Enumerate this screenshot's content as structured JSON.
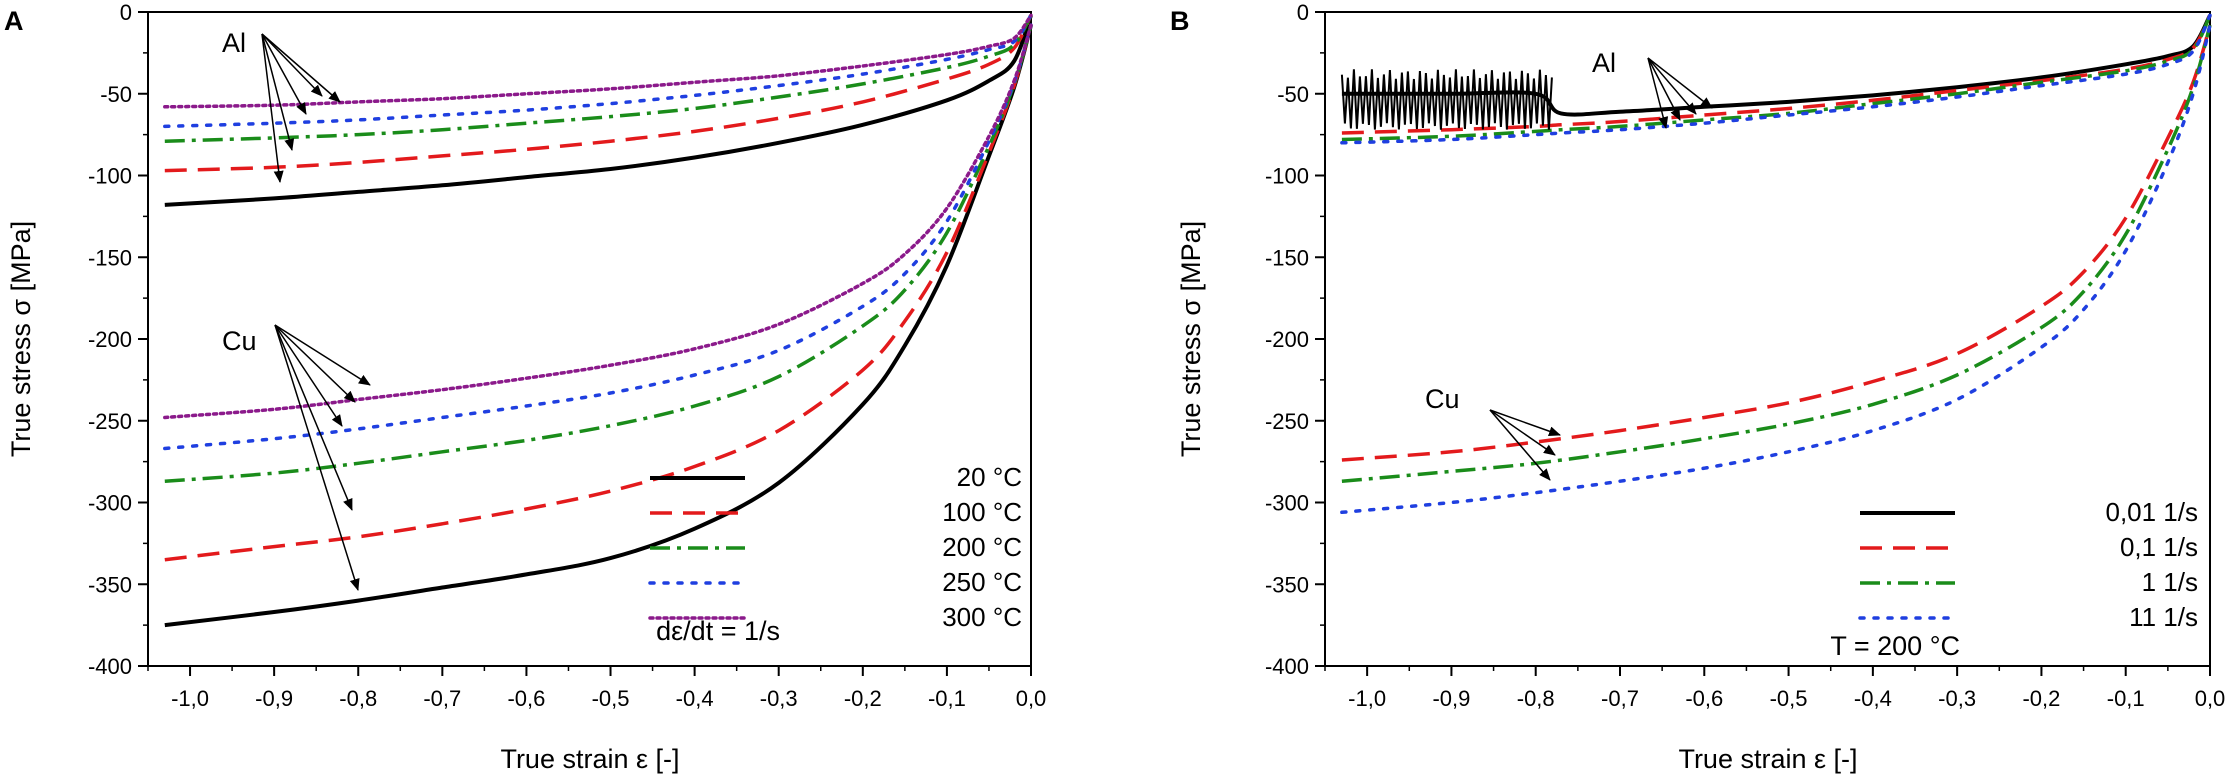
{
  "chart_data": [
    {
      "type": "line",
      "panel_label": "A",
      "xlabel": "True strain ε [-]",
      "ylabel": "True stress σ [MPa]",
      "xlim": [
        -1.05,
        0.0
      ],
      "ylim": [
        -400,
        0
      ],
      "x_ticks": [
        -1.0,
        -0.9,
        -0.8,
        -0.7,
        -0.6,
        -0.5,
        -0.4,
        -0.3,
        -0.2,
        -0.1,
        0.0
      ],
      "x_tick_labels": [
        "-1,0",
        "-0,9",
        "-0,8",
        "-0,7",
        "-0,6",
        "-0,5",
        "-0,4",
        "-0,3",
        "-0,2",
        "-0,1",
        "0,0"
      ],
      "y_ticks": [
        0,
        -50,
        -100,
        -150,
        -200,
        -250,
        -300,
        -350,
        -400
      ],
      "y_tick_labels": [
        "0",
        "-50",
        "-100",
        "-150",
        "-200",
        "-250",
        "-300",
        "-350",
        "-400"
      ],
      "grid": false,
      "legend_position": "bottom-right",
      "note": "dε/dt = 1/s",
      "groups": [
        {
          "label": "Al",
          "x": [
            -1.03,
            -0.9,
            -0.8,
            -0.7,
            -0.6,
            -0.5,
            -0.4,
            -0.3,
            -0.2,
            -0.1,
            -0.05,
            -0.02,
            0.0
          ],
          "series": [
            {
              "name": "20 °C",
              "values": [
                -118,
                -114,
                -110,
                -106,
                -101,
                -96,
                -89,
                -80,
                -69,
                -54,
                -42,
                -30,
                -2
              ]
            },
            {
              "name": "100 °C",
              "values": [
                -97,
                -95,
                -92,
                -88,
                -84,
                -79,
                -73,
                -65,
                -55,
                -41,
                -32,
                -22,
                -2
              ]
            },
            {
              "name": "200 °C",
              "values": [
                -79,
                -77,
                -75,
                -72,
                -68,
                -64,
                -59,
                -52,
                -44,
                -34,
                -27,
                -20,
                -2
              ]
            },
            {
              "name": "250 °C",
              "values": [
                -70,
                -68,
                -66,
                -63,
                -60,
                -56,
                -51,
                -45,
                -38,
                -29,
                -23,
                -18,
                -2
              ]
            },
            {
              "name": "300 °C",
              "values": [
                -58,
                -57,
                -55,
                -53,
                -50,
                -47,
                -43,
                -39,
                -33,
                -26,
                -21,
                -16,
                -2
              ]
            }
          ]
        },
        {
          "label": "Cu",
          "x": [
            -1.03,
            -0.9,
            -0.8,
            -0.7,
            -0.6,
            -0.5,
            -0.4,
            -0.3,
            -0.2,
            -0.15,
            -0.1,
            -0.05,
            -0.02,
            0.0
          ],
          "series": [
            {
              "name": "20 °C",
              "values": [
                -375,
                -367,
                -360,
                -352,
                -344,
                -334,
                -316,
                -288,
                -240,
                -204,
                -155,
                -88,
                -46,
                -8
              ]
            },
            {
              "name": "100 °C",
              "values": [
                -335,
                -327,
                -321,
                -313,
                -304,
                -293,
                -278,
                -256,
                -219,
                -189,
                -147,
                -86,
                -45,
                -8
              ]
            },
            {
              "name": "200 °C",
              "values": [
                -287,
                -282,
                -276,
                -269,
                -262,
                -253,
                -241,
                -223,
                -192,
                -170,
                -135,
                -82,
                -44,
                -8
              ]
            },
            {
              "name": "250 °C",
              "values": [
                -267,
                -261,
                -255,
                -248,
                -241,
                -233,
                -222,
                -207,
                -180,
                -160,
                -128,
                -79,
                -43,
                -8
              ]
            },
            {
              "name": "300 °C",
              "values": [
                -248,
                -243,
                -237,
                -231,
                -224,
                -216,
                -206,
                -191,
                -166,
                -148,
                -120,
                -76,
                -42,
                -8
              ]
            }
          ]
        }
      ]
    },
    {
      "type": "line",
      "panel_label": "B",
      "xlabel": "True strain ε [-]",
      "ylabel": "True stress σ [MPa]",
      "xlim": [
        -1.05,
        0.0
      ],
      "ylim": [
        -400,
        0
      ],
      "x_ticks": [
        -1.0,
        -0.9,
        -0.8,
        -0.7,
        -0.6,
        -0.5,
        -0.4,
        -0.3,
        -0.2,
        -0.1,
        0.0
      ],
      "x_tick_labels": [
        "-1,0",
        "-0,9",
        "-0,8",
        "-0,7",
        "-0,6",
        "-0,5",
        "-0,4",
        "-0,3",
        "-0,2",
        "-0,1",
        "0,0"
      ],
      "y_ticks": [
        0,
        -50,
        -100,
        -150,
        -200,
        -250,
        -300,
        -350,
        -400
      ],
      "y_tick_labels": [
        "0",
        "-50",
        "-100",
        "-150",
        "-200",
        "-250",
        "-300",
        "-350",
        "-400"
      ],
      "grid": false,
      "legend_position": "bottom-right",
      "note": "T = 200 °C",
      "groups": [
        {
          "label": "Al",
          "x": [
            -1.03,
            -0.9,
            -0.8,
            -0.77,
            -0.7,
            -0.6,
            -0.5,
            -0.4,
            -0.3,
            -0.2,
            -0.1,
            -0.05,
            -0.02,
            0.0
          ],
          "series": [
            {
              "name": "0,01 1/s",
              "values": [
                -50,
                -50,
                -50,
                -62,
                -61,
                -58,
                -55,
                -51,
                -46,
                -40,
                -32,
                -27,
                -21,
                -2
              ]
            },
            {
              "name": "0,1 1/s",
              "values": [
                -74,
                -72,
                -70,
                -69,
                -67,
                -63,
                -59,
                -54,
                -48,
                -42,
                -35,
                -29,
                -22,
                -2
              ]
            },
            {
              "name": "1 1/s",
              "values": [
                -78,
                -76,
                -73,
                -72,
                -70,
                -66,
                -62,
                -56,
                -50,
                -43,
                -36,
                -30,
                -23,
                -2
              ]
            },
            {
              "name": "11 1/s",
              "values": [
                -80,
                -78,
                -75,
                -74,
                -72,
                -68,
                -63,
                -58,
                -52,
                -45,
                -38,
                -32,
                -24,
                -2
              ]
            }
          ]
        },
        {
          "label": "Cu",
          "x": [
            -1.03,
            -0.9,
            -0.8,
            -0.7,
            -0.6,
            -0.5,
            -0.4,
            -0.3,
            -0.2,
            -0.15,
            -0.1,
            -0.05,
            -0.02,
            0.0
          ],
          "series": [
            {
              "name": "0,1 1/s",
              "values": [
                -274,
                -269,
                -263,
                -256,
                -248,
                -239,
                -226,
                -209,
                -180,
                -159,
                -126,
                -77,
                -43,
                -8
              ]
            },
            {
              "name": "1 1/s",
              "values": [
                -287,
                -281,
                -276,
                -269,
                -261,
                -252,
                -240,
                -222,
                -193,
                -171,
                -136,
                -84,
                -46,
                -8
              ]
            },
            {
              "name": "11 1/s",
              "values": [
                -306,
                -300,
                -294,
                -287,
                -279,
                -269,
                -256,
                -237,
                -205,
                -182,
                -146,
                -92,
                -50,
                -8
              ]
            }
          ]
        }
      ]
    }
  ],
  "legends": [
    [
      {
        "name": "20 °C",
        "color": "#000000",
        "dash": "solid"
      },
      {
        "name": "100 °C",
        "color": "#e31a1c",
        "dash": "dash"
      },
      {
        "name": "200 °C",
        "color": "#1a8c1a",
        "dash": "dashdot"
      },
      {
        "name": "250 °C",
        "color": "#1f3fe0",
        "dash": "dot"
      },
      {
        "name": "300 °C",
        "color": "#8b1a8b",
        "dash": "shortdot"
      }
    ],
    [
      {
        "name": "0,01 1/s",
        "color": "#000000",
        "dash": "solid"
      },
      {
        "name": "0,1 1/s",
        "color": "#e31a1c",
        "dash": "dash"
      },
      {
        "name": "1 1/s",
        "color": "#1a8c1a",
        "dash": "dashdot"
      },
      {
        "name": "11 1/s",
        "color": "#1f3fe0",
        "dash": "dot"
      }
    ]
  ]
}
